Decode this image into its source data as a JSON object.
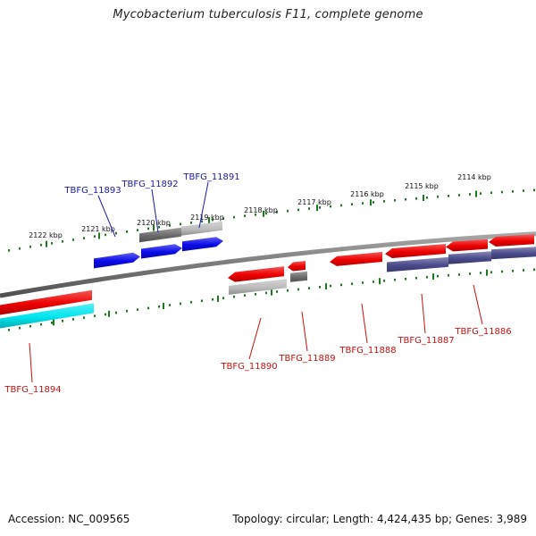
{
  "header": {
    "title": "Mycobacterium tuberculosis F11, complete genome"
  },
  "footer": {
    "accession": "Accession: NC_009565",
    "summary": "Topology: circular; Length: 4,424,435 bp; Genes: 3,989"
  },
  "colors": {
    "backbone": "#7a7a7a",
    "tick": "#1f7a1f",
    "forward_label": "#1a1ab0",
    "reverse_label": "#cc1111",
    "gene_blue": "#0a0ae8",
    "gene_red": "#ee0000",
    "gene_cyan": "#00e5ee",
    "gene_navy": "#4a4a8c",
    "gene_darkgray": "#6a6a6a",
    "gene_lightgray": "#bcbcbc"
  },
  "ruler": {
    "tick_labels": [
      "2122 kbp",
      "2121 kbp",
      "2120 kbp",
      "2119 kbp",
      "2118 kbp",
      "2117 kbp",
      "2116 kbp",
      "2115 kbp",
      "2114 kbp"
    ]
  },
  "genes": {
    "forward": [
      "TBFG_11893",
      "TBFG_11892",
      "TBFG_11891"
    ],
    "reverse": [
      "TBFG_11894",
      "TBFG_11890",
      "TBFG_11889",
      "TBFG_11888",
      "TBFG_11887",
      "TBFG_11886"
    ]
  }
}
